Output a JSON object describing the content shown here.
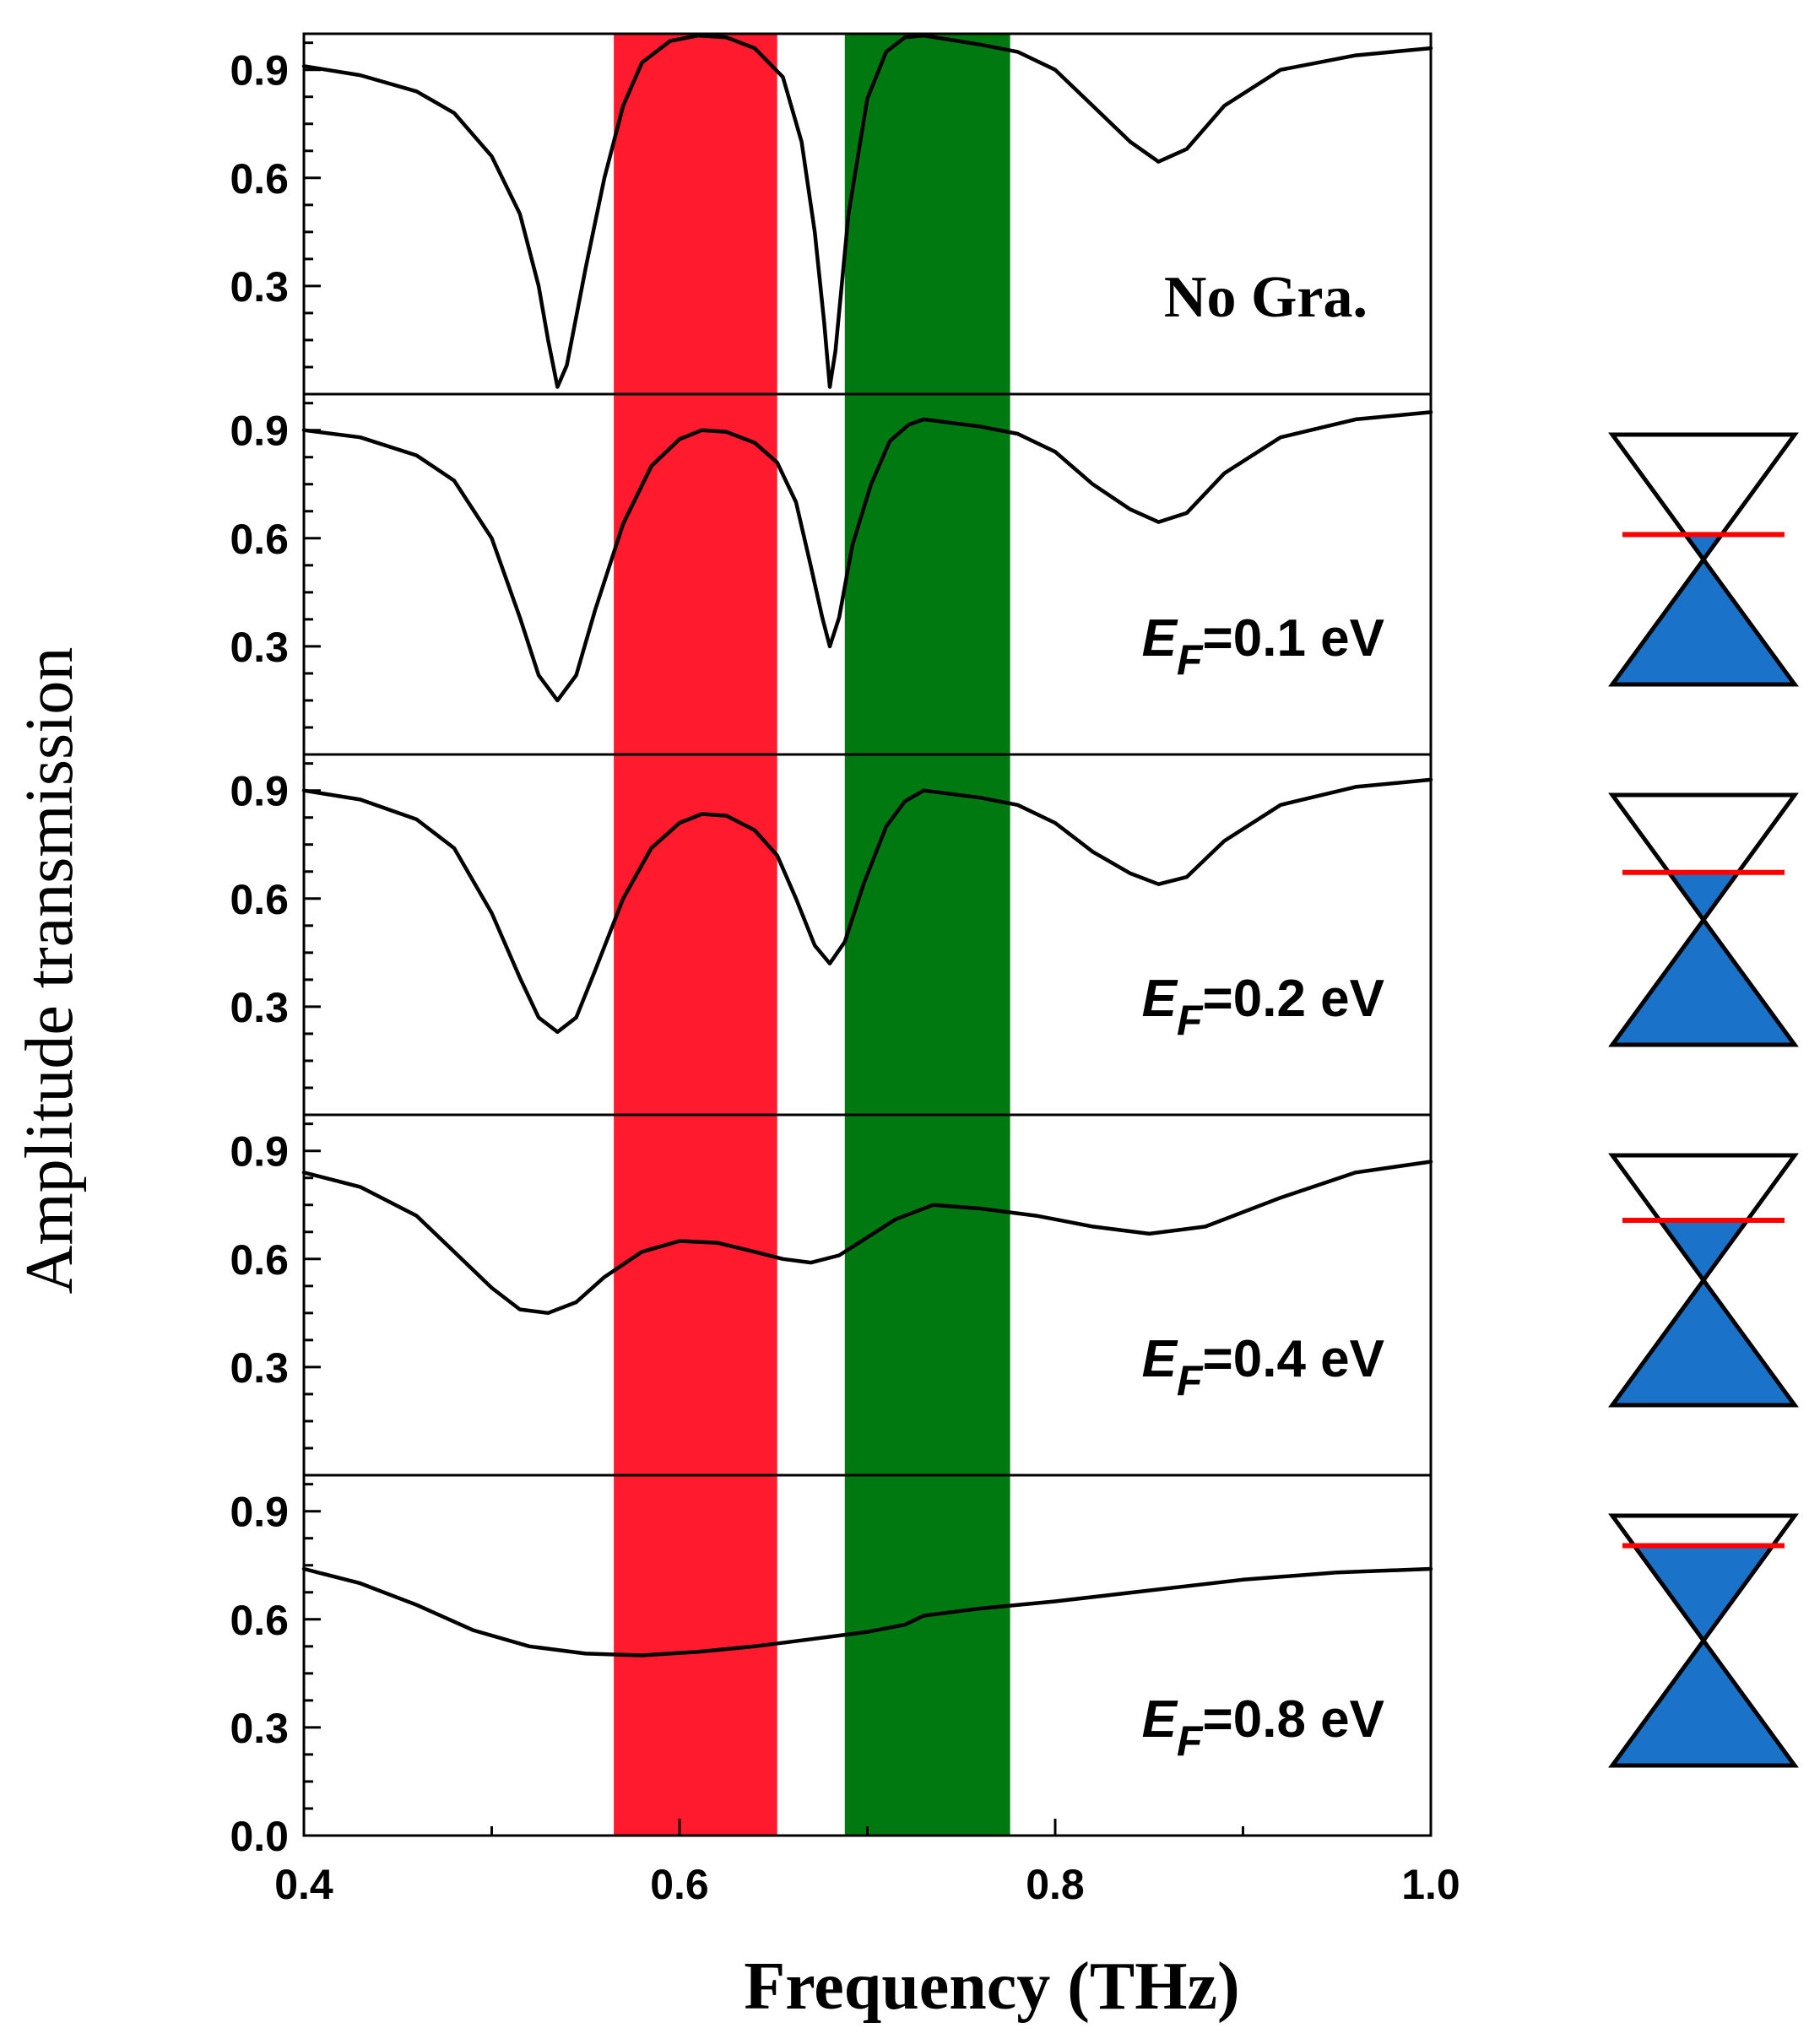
{
  "chart_data": {
    "type": "line",
    "xlabel": "Frequency (THz)",
    "ylabel": "Amplitude transmission",
    "xlim": [
      0.4,
      1.0
    ],
    "ylim": [
      0.0,
      1.0
    ],
    "x_ticks": [
      "0.4",
      "0.6",
      "0.8",
      "1.0"
    ],
    "y_ticks": [
      "0.3",
      "0.6",
      "0.9"
    ],
    "bottom_y_ticks": [
      "0.0",
      "0.3",
      "0.6",
      "0.9"
    ],
    "bands": [
      {
        "name": "red-band",
        "from": 0.565,
        "to": 0.652,
        "color": "#ff1a2e"
      },
      {
        "name": "green-band",
        "from": 0.688,
        "to": 0.776,
        "color": "#007a10"
      }
    ],
    "curve_color": "#000000",
    "dirac_fill_color": "#1a73c8",
    "fermi_line_color": "#ff0000",
    "panels": [
      {
        "label": "No Gra.",
        "fermi_fraction": null,
        "points": [
          [
            0.4,
            0.91
          ],
          [
            0.43,
            0.885
          ],
          [
            0.46,
            0.84
          ],
          [
            0.48,
            0.78
          ],
          [
            0.5,
            0.66
          ],
          [
            0.515,
            0.5
          ],
          [
            0.525,
            0.3
          ],
          [
            0.53,
            0.15
          ],
          [
            0.535,
            0.02
          ],
          [
            0.54,
            0.08
          ],
          [
            0.55,
            0.35
          ],
          [
            0.56,
            0.6
          ],
          [
            0.57,
            0.8
          ],
          [
            0.58,
            0.92
          ],
          [
            0.595,
            0.98
          ],
          [
            0.61,
            0.995
          ],
          [
            0.625,
            0.99
          ],
          [
            0.64,
            0.96
          ],
          [
            0.655,
            0.88
          ],
          [
            0.665,
            0.7
          ],
          [
            0.672,
            0.45
          ],
          [
            0.677,
            0.2
          ],
          [
            0.68,
            0.02
          ],
          [
            0.683,
            0.12
          ],
          [
            0.69,
            0.5
          ],
          [
            0.7,
            0.82
          ],
          [
            0.71,
            0.95
          ],
          [
            0.72,
            0.99
          ],
          [
            0.73,
            0.995
          ],
          [
            0.76,
            0.97
          ],
          [
            0.78,
            0.95
          ],
          [
            0.8,
            0.9
          ],
          [
            0.82,
            0.8
          ],
          [
            0.84,
            0.7
          ],
          [
            0.855,
            0.645
          ],
          [
            0.87,
            0.68
          ],
          [
            0.89,
            0.8
          ],
          [
            0.92,
            0.9
          ],
          [
            0.96,
            0.94
          ],
          [
            1.0,
            0.96
          ]
        ]
      },
      {
        "label": "E_F=0.1 eV",
        "label_symbol": "E",
        "label_subscript": "F",
        "label_rest": "=0.1 eV",
        "fermi_fraction": 0.4,
        "points": [
          [
            0.4,
            0.9
          ],
          [
            0.43,
            0.88
          ],
          [
            0.46,
            0.83
          ],
          [
            0.48,
            0.76
          ],
          [
            0.5,
            0.6
          ],
          [
            0.515,
            0.38
          ],
          [
            0.525,
            0.22
          ],
          [
            0.535,
            0.15
          ],
          [
            0.545,
            0.22
          ],
          [
            0.555,
            0.4
          ],
          [
            0.57,
            0.64
          ],
          [
            0.585,
            0.8
          ],
          [
            0.6,
            0.875
          ],
          [
            0.612,
            0.9
          ],
          [
            0.625,
            0.895
          ],
          [
            0.64,
            0.865
          ],
          [
            0.652,
            0.81
          ],
          [
            0.662,
            0.7
          ],
          [
            0.67,
            0.52
          ],
          [
            0.676,
            0.38
          ],
          [
            0.68,
            0.3
          ],
          [
            0.685,
            0.38
          ],
          [
            0.692,
            0.58
          ],
          [
            0.702,
            0.75
          ],
          [
            0.712,
            0.87
          ],
          [
            0.722,
            0.915
          ],
          [
            0.73,
            0.93
          ],
          [
            0.76,
            0.91
          ],
          [
            0.78,
            0.89
          ],
          [
            0.8,
            0.84
          ],
          [
            0.82,
            0.75
          ],
          [
            0.84,
            0.68
          ],
          [
            0.855,
            0.645
          ],
          [
            0.87,
            0.67
          ],
          [
            0.89,
            0.78
          ],
          [
            0.92,
            0.88
          ],
          [
            0.96,
            0.93
          ],
          [
            1.0,
            0.95
          ]
        ]
      },
      {
        "label": "E_F=0.2 eV",
        "label_symbol": "E",
        "label_subscript": "F",
        "label_rest": "=0.2 eV",
        "fermi_fraction": 0.31,
        "points": [
          [
            0.4,
            0.9
          ],
          [
            0.43,
            0.875
          ],
          [
            0.46,
            0.82
          ],
          [
            0.48,
            0.74
          ],
          [
            0.5,
            0.56
          ],
          [
            0.515,
            0.38
          ],
          [
            0.525,
            0.27
          ],
          [
            0.535,
            0.23
          ],
          [
            0.545,
            0.27
          ],
          [
            0.555,
            0.4
          ],
          [
            0.57,
            0.6
          ],
          [
            0.585,
            0.74
          ],
          [
            0.6,
            0.81
          ],
          [
            0.612,
            0.835
          ],
          [
            0.625,
            0.83
          ],
          [
            0.64,
            0.79
          ],
          [
            0.652,
            0.72
          ],
          [
            0.662,
            0.6
          ],
          [
            0.672,
            0.47
          ],
          [
            0.68,
            0.42
          ],
          [
            0.688,
            0.48
          ],
          [
            0.698,
            0.64
          ],
          [
            0.71,
            0.8
          ],
          [
            0.72,
            0.87
          ],
          [
            0.73,
            0.9
          ],
          [
            0.76,
            0.88
          ],
          [
            0.78,
            0.86
          ],
          [
            0.8,
            0.81
          ],
          [
            0.82,
            0.73
          ],
          [
            0.84,
            0.67
          ],
          [
            0.855,
            0.64
          ],
          [
            0.87,
            0.66
          ],
          [
            0.89,
            0.76
          ],
          [
            0.92,
            0.86
          ],
          [
            0.96,
            0.91
          ],
          [
            1.0,
            0.93
          ]
        ]
      },
      {
        "label": "E_F=0.4 eV",
        "label_symbol": "E",
        "label_subscript": "F",
        "label_rest": "=0.4 eV",
        "fermi_fraction": 0.26,
        "points": [
          [
            0.4,
            0.84
          ],
          [
            0.43,
            0.8
          ],
          [
            0.46,
            0.72
          ],
          [
            0.48,
            0.62
          ],
          [
            0.5,
            0.52
          ],
          [
            0.515,
            0.46
          ],
          [
            0.53,
            0.45
          ],
          [
            0.545,
            0.48
          ],
          [
            0.56,
            0.55
          ],
          [
            0.58,
            0.62
          ],
          [
            0.6,
            0.65
          ],
          [
            0.62,
            0.645
          ],
          [
            0.64,
            0.62
          ],
          [
            0.655,
            0.6
          ],
          [
            0.67,
            0.59
          ],
          [
            0.685,
            0.61
          ],
          [
            0.7,
            0.66
          ],
          [
            0.715,
            0.71
          ],
          [
            0.735,
            0.75
          ],
          [
            0.76,
            0.74
          ],
          [
            0.79,
            0.72
          ],
          [
            0.82,
            0.69
          ],
          [
            0.85,
            0.67
          ],
          [
            0.88,
            0.69
          ],
          [
            0.92,
            0.77
          ],
          [
            0.96,
            0.84
          ],
          [
            1.0,
            0.87
          ]
        ]
      },
      {
        "label": "E_F=0.8 eV",
        "label_symbol": "E",
        "label_subscript": "F",
        "label_rest": "=0.8 eV",
        "fermi_fraction": 0.12,
        "points": [
          [
            0.4,
            0.74
          ],
          [
            0.43,
            0.7
          ],
          [
            0.46,
            0.64
          ],
          [
            0.49,
            0.57
          ],
          [
            0.52,
            0.525
          ],
          [
            0.55,
            0.505
          ],
          [
            0.58,
            0.5
          ],
          [
            0.61,
            0.51
          ],
          [
            0.64,
            0.525
          ],
          [
            0.67,
            0.545
          ],
          [
            0.7,
            0.565
          ],
          [
            0.72,
            0.585
          ],
          [
            0.73,
            0.61
          ],
          [
            0.76,
            0.63
          ],
          [
            0.8,
            0.65
          ],
          [
            0.85,
            0.68
          ],
          [
            0.9,
            0.71
          ],
          [
            0.95,
            0.73
          ],
          [
            1.0,
            0.74
          ]
        ]
      }
    ]
  }
}
